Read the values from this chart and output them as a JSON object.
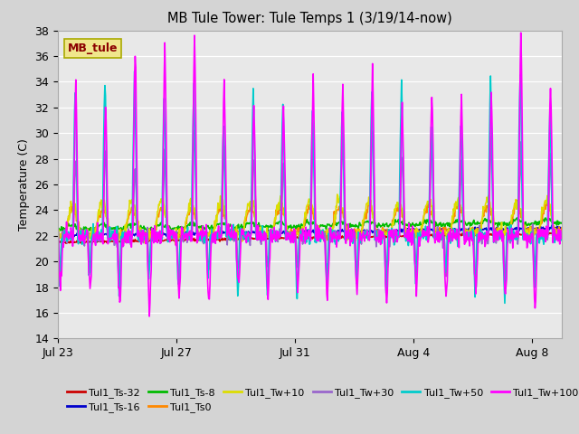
{
  "title": "MB Tule Tower: Tule Temps 1 (3/19/14-now)",
  "ylabel": "Temperature (C)",
  "ylim": [
    14,
    38
  ],
  "yticks": [
    14,
    16,
    18,
    20,
    22,
    24,
    26,
    28,
    30,
    32,
    34,
    36,
    38
  ],
  "bg_color": "#e8e8e8",
  "fig_bg": "#d4d4d4",
  "series": [
    {
      "label": "Tul1_Ts-32",
      "color": "#cc0000",
      "lw": 1.2
    },
    {
      "label": "Tul1_Ts-16",
      "color": "#0000cc",
      "lw": 1.2
    },
    {
      "label": "Tul1_Ts-8",
      "color": "#00bb00",
      "lw": 1.2
    },
    {
      "label": "Tul1_Ts0",
      "color": "#ff8800",
      "lw": 1.2
    },
    {
      "label": "Tul1_Tw+10",
      "color": "#dddd00",
      "lw": 1.2
    },
    {
      "label": "Tul1_Tw+30",
      "color": "#9966cc",
      "lw": 1.2
    },
    {
      "label": "Tul1_Tw+50",
      "color": "#00cccc",
      "lw": 1.2
    },
    {
      "label": "Tul1_Tw+100",
      "color": "#ff00ff",
      "lw": 1.2
    }
  ],
  "xtick_labels": [
    "Jul 23",
    "Jul 27",
    "Jul 31",
    "Aug 4",
    "Aug 8"
  ],
  "xtick_positions": [
    0,
    4,
    8,
    12,
    16
  ],
  "n_days": 17,
  "pts_per_day": 48,
  "seed": 42,
  "legend_box_color": "#f0e68c",
  "legend_box_text": "MB_tule",
  "legend_box_text_color": "#8b0000"
}
